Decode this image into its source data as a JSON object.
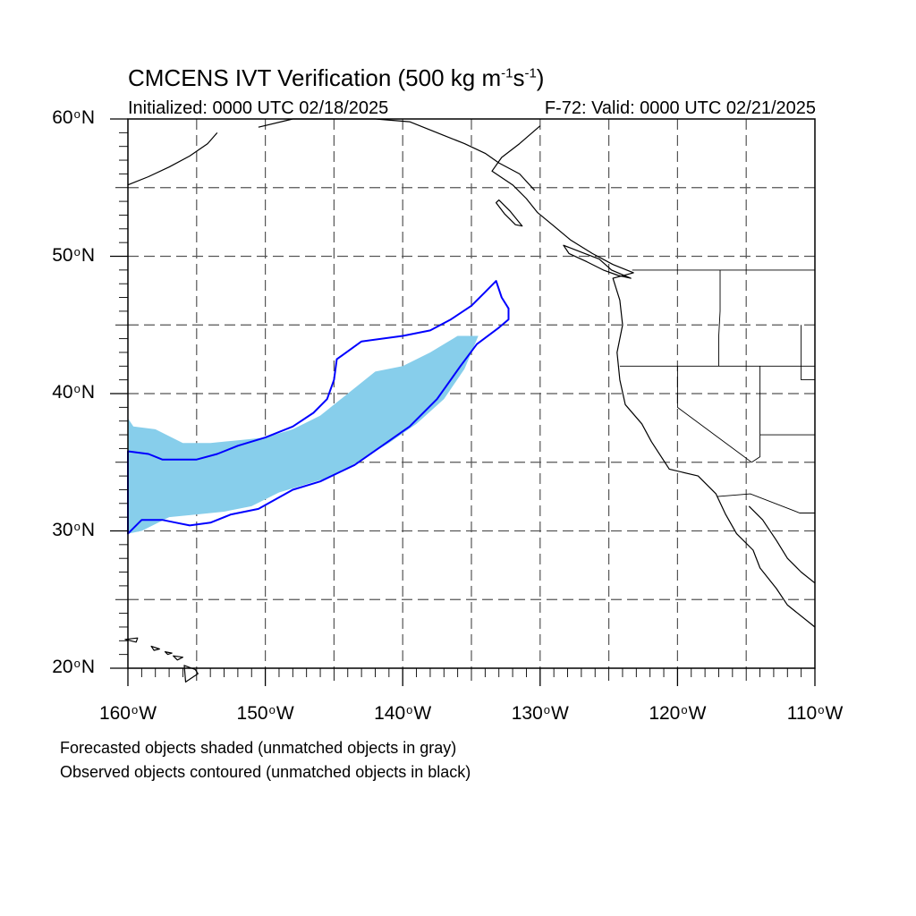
{
  "figure": {
    "title_text": "CMCENS IVT Verification (500 kg m",
    "title_exp1": "-1",
    "title_mid": "s",
    "title_exp2": "-1",
    "title_end": ")",
    "initialized": "Initialized: 0000 UTC 02/18/2025",
    "valid": "F-72: Valid: 0000 UTC 02/21/2025",
    "notes": [
      "Forecasted objects shaded (unmatched objects in gray)",
      "Observed objects contoured (unmatched objects in black)"
    ]
  },
  "map": {
    "lon_range": [
      -160,
      -110
    ],
    "lat_range": [
      20,
      60
    ],
    "lat_labels": [
      {
        "value": 60,
        "num": "60",
        "hemi": "N"
      },
      {
        "value": 50,
        "num": "50",
        "hemi": "N"
      },
      {
        "value": 40,
        "num": "40",
        "hemi": "N"
      },
      {
        "value": 30,
        "num": "30",
        "hemi": "N"
      },
      {
        "value": 20,
        "num": "20",
        "hemi": "N"
      }
    ],
    "lon_labels": [
      {
        "value": -160,
        "num": "160",
        "hemi": "W"
      },
      {
        "value": -150,
        "num": "150",
        "hemi": "W"
      },
      {
        "value": -140,
        "num": "140",
        "hemi": "W"
      },
      {
        "value": -130,
        "num": "130",
        "hemi": "W"
      },
      {
        "value": -120,
        "num": "120",
        "hemi": "W"
      },
      {
        "value": -110,
        "num": "110",
        "hemi": "W"
      }
    ],
    "grid_spacing_deg": 5,
    "grid_style": "dashed",
    "colors": {
      "forecast_fill": "#87ceeb",
      "observed_contour": "#0000ff",
      "coastline": "#000000",
      "grid": "#555555"
    },
    "forecast_object": [
      [
        -160,
        38.2
      ],
      [
        -159.6,
        37.6
      ],
      [
        -158,
        37.4
      ],
      [
        -156,
        36.4
      ],
      [
        -154,
        36.4
      ],
      [
        -152,
        36.6
      ],
      [
        -150,
        36.8
      ],
      [
        -148,
        37.4
      ],
      [
        -146,
        38.4
      ],
      [
        -144,
        40.0
      ],
      [
        -142,
        41.6
      ],
      [
        -140,
        42.0
      ],
      [
        -138,
        43.0
      ],
      [
        -136,
        44.2
      ],
      [
        -134.5,
        44.2
      ],
      [
        -135.5,
        41.8
      ],
      [
        -137,
        39.6
      ],
      [
        -139,
        37.8
      ],
      [
        -141,
        36.4
      ],
      [
        -143,
        35.2
      ],
      [
        -145,
        34.0
      ],
      [
        -147,
        33.4
      ],
      [
        -149,
        32.8
      ],
      [
        -151,
        31.8
      ],
      [
        -153,
        31.4
      ],
      [
        -155,
        31.2
      ],
      [
        -157,
        31.0
      ],
      [
        -159,
        30.0
      ],
      [
        -160,
        29.8
      ]
    ],
    "observed_object": [
      [
        -160,
        35.8
      ],
      [
        -158.5,
        35.6
      ],
      [
        -157.5,
        35.2
      ],
      [
        -155,
        35.2
      ],
      [
        -153.5,
        35.6
      ],
      [
        -152,
        36.2
      ],
      [
        -150,
        36.8
      ],
      [
        -148,
        37.6
      ],
      [
        -146.5,
        38.6
      ],
      [
        -145.5,
        39.6
      ],
      [
        -145,
        41.0
      ],
      [
        -144.8,
        42.5
      ],
      [
        -143,
        43.8
      ],
      [
        -140,
        44.2
      ],
      [
        -138,
        44.6
      ],
      [
        -136.5,
        45.4
      ],
      [
        -135,
        46.4
      ],
      [
        -134,
        47.4
      ],
      [
        -133.2,
        48.2
      ],
      [
        -132.8,
        47.0
      ],
      [
        -132.3,
        46.2
      ],
      [
        -132.3,
        45.4
      ],
      [
        -133,
        44.8
      ],
      [
        -134.6,
        43.6
      ],
      [
        -135.8,
        42.0
      ],
      [
        -137.5,
        39.6
      ],
      [
        -139.5,
        37.6
      ],
      [
        -141.5,
        36.2
      ],
      [
        -143.5,
        34.8
      ],
      [
        -146,
        33.6
      ],
      [
        -148,
        33.0
      ],
      [
        -150.5,
        31.6
      ],
      [
        -152.5,
        31.2
      ],
      [
        -154,
        30.6
      ],
      [
        -155.5,
        30.4
      ],
      [
        -156.5,
        30.6
      ],
      [
        -157.5,
        30.8
      ],
      [
        -159,
        30.8
      ],
      [
        -160,
        29.8
      ]
    ],
    "coastline_north_america": [
      [
        -130.0,
        59.5
      ],
      [
        -131.5,
        58.2
      ],
      [
        -132.8,
        57.2
      ],
      [
        -133.5,
        56.2
      ],
      [
        -132.0,
        55.2
      ],
      [
        -131.0,
        54.2
      ],
      [
        -130.2,
        53.2
      ],
      [
        -129.0,
        52.2
      ],
      [
        -127.8,
        51.2
      ],
      [
        -126.2,
        50.2
      ],
      [
        -124.7,
        49.4
      ],
      [
        -123.2,
        48.8
      ],
      [
        -124.7,
        48.4
      ],
      [
        -124.2,
        46.8
      ],
      [
        -124.0,
        45.0
      ],
      [
        -124.4,
        43.0
      ],
      [
        -124.2,
        41.0
      ],
      [
        -123.8,
        39.2
      ],
      [
        -122.6,
        37.8
      ],
      [
        -121.9,
        36.5
      ],
      [
        -120.6,
        34.5
      ],
      [
        -118.5,
        34.0
      ],
      [
        -117.2,
        32.7
      ],
      [
        -116.5,
        31.2
      ],
      [
        -115.7,
        29.8
      ],
      [
        -114.5,
        28.6
      ],
      [
        -114.0,
        27.3
      ],
      [
        -112.8,
        25.8
      ],
      [
        -112.0,
        24.6
      ],
      [
        -110.0,
        23.0
      ]
    ],
    "coastline_gulf_california": [
      [
        -114.8,
        31.8
      ],
      [
        -113.8,
        30.8
      ],
      [
        -112.8,
        29.3
      ],
      [
        -112.0,
        28.0
      ],
      [
        -111.0,
        27.0
      ],
      [
        -110.0,
        26.2
      ]
    ],
    "coastline_alaska": [
      [
        -160,
        55.2
      ],
      [
        -158.5,
        55.8
      ],
      [
        -157,
        56.5
      ],
      [
        -155.5,
        57.3
      ],
      [
        -154.2,
        58.2
      ],
      [
        -153.5,
        59.0
      ]
    ],
    "coastline_mainland_north": [
      [
        -150.5,
        59.4
      ],
      [
        -148,
        60.0
      ],
      [
        -145,
        60.0
      ],
      [
        -142,
        60.0
      ],
      [
        -139.5,
        59.8
      ],
      [
        -137,
        58.8
      ],
      [
        -135.5,
        58.2
      ],
      [
        -134,
        57.5
      ],
      [
        -133,
        56.8
      ],
      [
        -131.5,
        56.0
      ],
      [
        -130.4,
        54.8
      ]
    ],
    "islands_vancouver": [
      [
        -128.3,
        50.8
      ],
      [
        -127.0,
        50.3
      ],
      [
        -125.7,
        49.8
      ],
      [
        -124.8,
        49.0
      ],
      [
        -123.4,
        48.4
      ],
      [
        -124.3,
        48.6
      ],
      [
        -125.4,
        49.0
      ],
      [
        -126.6,
        49.6
      ],
      [
        -127.9,
        50.2
      ],
      [
        -128.3,
        50.8
      ]
    ],
    "islands_haida_gwaii": [
      [
        -133.0,
        54.1
      ],
      [
        -132.2,
        53.3
      ],
      [
        -131.3,
        52.2
      ],
      [
        -131.8,
        52.3
      ],
      [
        -132.6,
        53.1
      ],
      [
        -133.2,
        53.9
      ],
      [
        -133.0,
        54.1
      ]
    ],
    "islands_hawaii": [
      [
        [
          -160.2,
          22.1
        ],
        [
          -159.3,
          22.2
        ],
        [
          -159.4,
          21.9
        ],
        [
          -160.2,
          22.1
        ]
      ],
      [
        [
          -158.3,
          21.6
        ],
        [
          -157.7,
          21.4
        ],
        [
          -158.1,
          21.3
        ],
        [
          -158.3,
          21.6
        ]
      ],
      [
        [
          -157.3,
          21.2
        ],
        [
          -156.8,
          21.1
        ],
        [
          -157.1,
          21.0
        ],
        [
          -157.3,
          21.2
        ]
      ],
      [
        [
          -156.7,
          20.9
        ],
        [
          -156.0,
          20.8
        ],
        [
          -156.4,
          20.6
        ],
        [
          -156.7,
          20.9
        ]
      ],
      [
        [
          -155.9,
          20.2
        ],
        [
          -155.1,
          19.9
        ],
        [
          -154.9,
          19.6
        ],
        [
          -155.8,
          19.0
        ],
        [
          -155.9,
          20.2
        ]
      ]
    ],
    "borders": [
      [
        [
          -123.3,
          49.0
        ],
        [
          -110,
          49.0
        ]
      ],
      [
        [
          -124.2,
          42.0
        ],
        [
          -110,
          42.0
        ]
      ],
      [
        [
          -116.9,
          49.0
        ],
        [
          -116.9,
          46.0
        ],
        [
          -117.0,
          44.2
        ],
        [
          -117.0,
          42.0
        ]
      ],
      [
        [
          -120.0,
          42.0
        ],
        [
          -120.0,
          39.0
        ],
        [
          -114.6,
          35.0
        ]
      ],
      [
        [
          -114.6,
          35.0
        ],
        [
          -114.0,
          35.4
        ],
        [
          -114.0,
          42.0
        ]
      ],
      [
        [
          -111.0,
          45.0
        ],
        [
          -111.0,
          44.5
        ],
        [
          -111.0,
          41.0
        ],
        [
          -110,
          41.0
        ]
      ],
      [
        [
          -117.1,
          32.5
        ],
        [
          -114.7,
          32.7
        ],
        [
          -111.1,
          31.3
        ],
        [
          -110,
          31.3
        ]
      ],
      [
        [
          -110,
          37.0
        ],
        [
          -114.0,
          37.0
        ]
      ]
    ]
  }
}
